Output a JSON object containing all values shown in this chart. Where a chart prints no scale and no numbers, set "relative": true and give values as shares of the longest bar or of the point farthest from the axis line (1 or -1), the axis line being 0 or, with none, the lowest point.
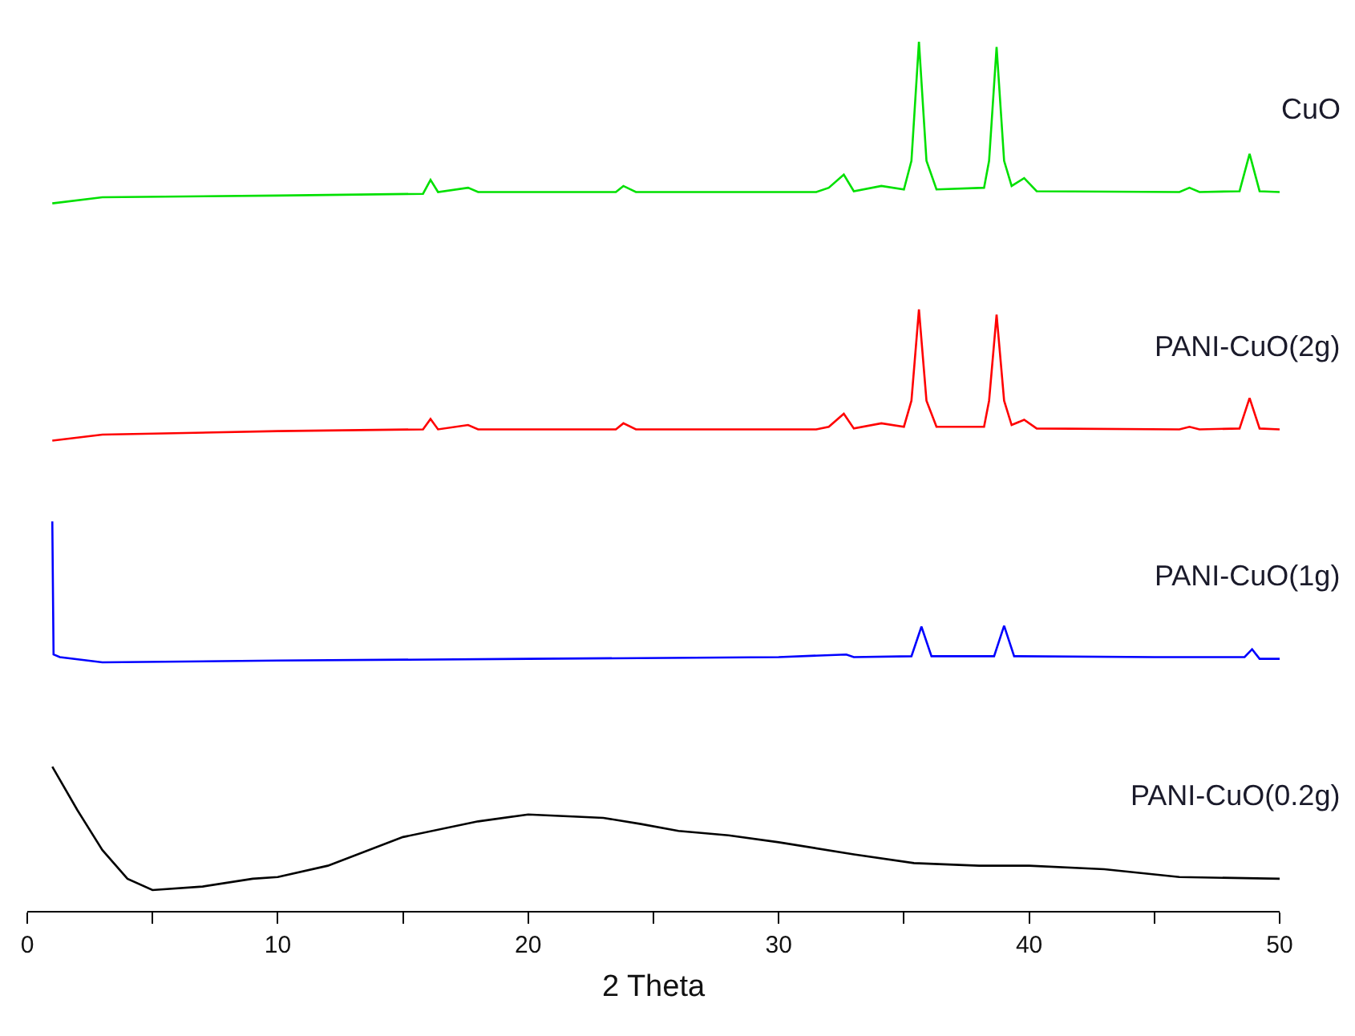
{
  "chart_data": {
    "type": "line",
    "relative": true,
    "xlabel": "2 Theta",
    "xlim": [
      0,
      50
    ],
    "xticks": [
      0,
      {
        "value": 5,
        "label": null
      },
      10,
      {
        "value": 15,
        "label": null
      },
      20,
      {
        "value": 25,
        "label": null
      },
      30,
      {
        "value": 35,
        "label": null
      },
      40,
      {
        "value": 45,
        "label": null
      },
      50
    ],
    "legend": false,
    "series": [
      {
        "name": "CuO",
        "color": "#00e000",
        "x": [
          1,
          3,
          10,
          15.8,
          16.1,
          16.4,
          17.6,
          18,
          23.5,
          23.8,
          24.3,
          31.5,
          32,
          32.6,
          33,
          34.1,
          35,
          35.3,
          35.6,
          35.9,
          36.3,
          38.2,
          38.4,
          38.7,
          39,
          39.3,
          39.8,
          40.3,
          46,
          46.4,
          46.8,
          48.4,
          48.8,
          49.2,
          50
        ],
        "values": [
          0.814,
          0.821,
          0.823,
          0.825,
          0.841,
          0.827,
          0.832,
          0.827,
          0.827,
          0.834,
          0.827,
          0.827,
          0.832,
          0.847,
          0.828,
          0.834,
          0.83,
          0.863,
          1,
          0.863,
          0.83,
          0.832,
          0.863,
          0.994,
          0.863,
          0.834,
          0.843,
          0.828,
          0.827,
          0.832,
          0.827,
          0.828,
          0.871,
          0.828,
          0.827
        ]
      },
      {
        "name": "PANI-CuO(2g)",
        "color": "#ff0000",
        "x": [
          1,
          3,
          10,
          15.8,
          16.1,
          16.4,
          17.6,
          18,
          23.5,
          23.8,
          24.3,
          31.5,
          32,
          32.6,
          33,
          34.1,
          35,
          35.3,
          35.6,
          35.9,
          36.3,
          38.2,
          38.4,
          38.7,
          39,
          39.3,
          39.8,
          40.3,
          46,
          46.4,
          46.8,
          48.4,
          48.8,
          49.2,
          50
        ],
        "values": [
          0.541,
          0.548,
          0.552,
          0.554,
          0.566,
          0.554,
          0.559,
          0.554,
          0.554,
          0.561,
          0.554,
          0.554,
          0.557,
          0.572,
          0.555,
          0.561,
          0.557,
          0.587,
          0.692,
          0.587,
          0.557,
          0.557,
          0.587,
          0.686,
          0.587,
          0.559,
          0.565,
          0.555,
          0.554,
          0.557,
          0.554,
          0.555,
          0.59,
          0.555,
          0.554
        ]
      },
      {
        "name": "PANI-CuO(1g)",
        "color": "#0000ff",
        "x": [
          1,
          1.05,
          1.3,
          3,
          10,
          20,
          30,
          32.7,
          33,
          35.3,
          35.7,
          36.1,
          38.6,
          39,
          39.4,
          45,
          48.6,
          48.9,
          49.2,
          50
        ],
        "values": [
          0.448,
          0.295,
          0.292,
          0.286,
          0.288,
          0.29,
          0.292,
          0.295,
          0.292,
          0.293,
          0.327,
          0.293,
          0.293,
          0.328,
          0.293,
          0.292,
          0.292,
          0.301,
          0.29,
          0.29
        ]
      },
      {
        "name": "PANI-CuO(0.2g)",
        "color": "#000000",
        "x": [
          1,
          2,
          3,
          4,
          5,
          7,
          9,
          10,
          12,
          15,
          18,
          20,
          23,
          24.5,
          26,
          28,
          30,
          33,
          35.4,
          38,
          40,
          43,
          46,
          50
        ],
        "values": [
          0.166,
          0.116,
          0.07,
          0.037,
          0.024,
          0.028,
          0.037,
          0.039,
          0.052,
          0.085,
          0.103,
          0.111,
          0.107,
          0.1,
          0.092,
          0.087,
          0.079,
          0.065,
          0.055,
          0.052,
          0.052,
          0.048,
          0.039,
          0.037
        ]
      }
    ]
  }
}
